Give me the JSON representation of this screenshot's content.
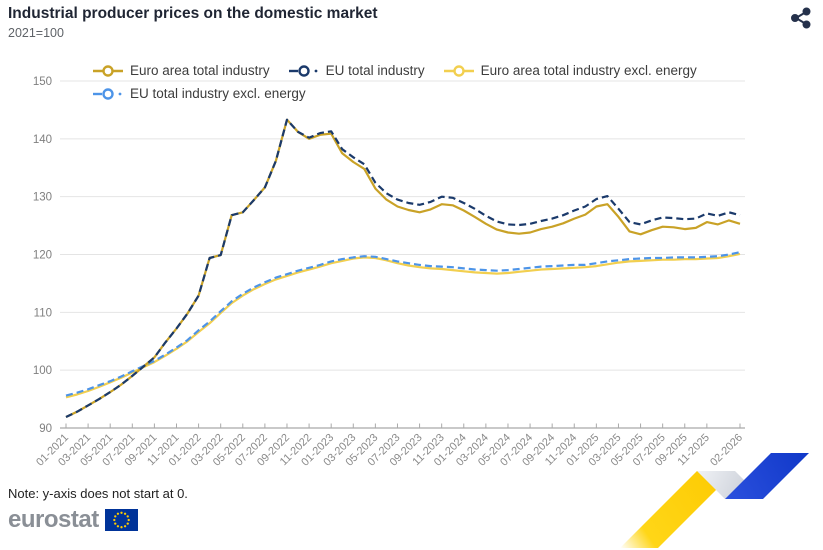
{
  "header": {
    "title": "Industrial producer prices on the domestic market",
    "subtitle": "2021=100"
  },
  "icons": {
    "share": "share-network",
    "flag": "eu-flag"
  },
  "note": {
    "text": "Note: y-axis does not start at 0."
  },
  "footer": {
    "brand": "eurostat"
  },
  "chart_data": {
    "type": "line",
    "title": "Industrial producer prices on the domestic market",
    "subtitle": "2021=100",
    "ylim": [
      90,
      150
    ],
    "yticks": [
      90,
      100,
      110,
      120,
      130,
      140,
      150
    ],
    "grid": "horizontal",
    "legend_position": "top",
    "x": [
      "01-2021",
      "02-2021",
      "03-2021",
      "04-2021",
      "05-2021",
      "06-2021",
      "07-2021",
      "08-2021",
      "09-2021",
      "10-2021",
      "11-2021",
      "12-2021",
      "01-2022",
      "02-2022",
      "03-2022",
      "04-2022",
      "05-2022",
      "06-2022",
      "07-2022",
      "08-2022",
      "09-2022",
      "10-2022",
      "11-2022",
      "12-2022",
      "01-2023",
      "02-2023",
      "03-2023",
      "04-2023",
      "05-2023",
      "06-2023",
      "07-2023",
      "08-2023",
      "09-2023",
      "10-2023",
      "11-2023",
      "12-2023",
      "01-2024",
      "02-2024",
      "03-2024",
      "04-2024",
      "05-2024",
      "06-2024",
      "07-2024",
      "08-2024",
      "09-2024",
      "10-2024",
      "11-2024",
      "12-2024",
      "01-2025",
      "02-2025",
      "03-2025",
      "04-2025",
      "05-2025",
      "06-2025",
      "07-2025",
      "08-2025",
      "09-2025",
      "10-2025",
      "11-2025",
      "12-2025",
      "01-2026",
      "02-2026"
    ],
    "x_tick_indices": [
      0,
      2,
      4,
      6,
      8,
      10,
      12,
      14,
      16,
      18,
      20,
      22,
      24,
      26,
      28,
      30,
      32,
      34,
      36,
      38,
      40,
      42,
      44,
      46,
      48,
      50,
      52,
      54,
      56,
      58,
      61
    ],
    "series": [
      {
        "name": "Euro area total industry",
        "color": "#C9A227",
        "dash": "none",
        "values": [
          91.9,
          92.8,
          93.9,
          95.0,
          96.2,
          97.5,
          99.0,
          100.6,
          102.2,
          104.8,
          107.2,
          109.8,
          112.9,
          119.4,
          119.9,
          126.8,
          127.3,
          129.4,
          131.6,
          136.2,
          143.3,
          141.2,
          140.0,
          140.7,
          140.9,
          137.5,
          136.0,
          134.8,
          131.4,
          129.5,
          128.3,
          127.7,
          127.3,
          127.8,
          128.7,
          128.5,
          127.6,
          126.5,
          125.3,
          124.3,
          123.8,
          123.6,
          123.8,
          124.4,
          124.8,
          125.4,
          126.2,
          126.9,
          128.3,
          128.7,
          126.5,
          124.0,
          123.5,
          124.2,
          124.8,
          124.7,
          124.4,
          124.6,
          125.6,
          125.2,
          125.9,
          125.3
        ]
      },
      {
        "name": "EU total industry",
        "color": "#1B3A6B",
        "dash": "7 4",
        "values": [
          91.9,
          92.8,
          93.9,
          95.0,
          96.2,
          97.5,
          99.0,
          100.6,
          102.2,
          104.8,
          107.2,
          109.8,
          112.9,
          119.4,
          119.9,
          126.8,
          127.3,
          129.4,
          131.6,
          136.2,
          143.3,
          141.2,
          140.2,
          141.0,
          141.3,
          138.2,
          136.8,
          135.6,
          132.4,
          130.6,
          129.5,
          128.9,
          128.6,
          129.1,
          130.0,
          129.8,
          128.9,
          127.9,
          126.7,
          125.7,
          125.2,
          125.1,
          125.3,
          125.8,
          126.2,
          126.8,
          127.6,
          128.3,
          129.6,
          130.1,
          127.9,
          125.6,
          125.2,
          125.9,
          126.4,
          126.3,
          126.1,
          126.2,
          127.1,
          126.7,
          127.3,
          126.8
        ]
      },
      {
        "name": "Euro area total industry excl. energy",
        "color": "#F2CF4F",
        "dash": "none",
        "values": [
          95.3,
          95.8,
          96.4,
          97.1,
          97.9,
          98.7,
          99.6,
          100.5,
          101.4,
          102.5,
          103.7,
          105.0,
          106.6,
          108.1,
          109.9,
          111.6,
          112.9,
          114.0,
          114.9,
          115.7,
          116.3,
          116.9,
          117.4,
          117.9,
          118.5,
          118.9,
          119.3,
          119.5,
          119.4,
          119.0,
          118.5,
          118.1,
          117.8,
          117.6,
          117.5,
          117.3,
          117.1,
          116.9,
          116.8,
          116.7,
          116.8,
          117.0,
          117.2,
          117.4,
          117.5,
          117.6,
          117.7,
          117.8,
          118.0,
          118.3,
          118.6,
          118.8,
          118.9,
          119.0,
          119.1,
          119.1,
          119.2,
          119.2,
          119.3,
          119.4,
          119.7,
          120.1
        ]
      },
      {
        "name": "EU total industry excl. energy",
        "color": "#4D94E8",
        "dash": "7 4",
        "values": [
          95.6,
          96.1,
          96.7,
          97.4,
          98.1,
          98.9,
          99.8,
          100.7,
          101.6,
          102.7,
          103.9,
          105.2,
          106.9,
          108.4,
          110.2,
          111.9,
          113.2,
          114.3,
          115.2,
          116.0,
          116.6,
          117.2,
          117.7,
          118.2,
          118.8,
          119.2,
          119.5,
          119.7,
          119.6,
          119.2,
          118.8,
          118.5,
          118.2,
          118.0,
          117.9,
          117.8,
          117.6,
          117.4,
          117.3,
          117.2,
          117.3,
          117.5,
          117.7,
          117.9,
          118.0,
          118.1,
          118.2,
          118.2,
          118.5,
          118.8,
          119.0,
          119.2,
          119.3,
          119.4,
          119.4,
          119.5,
          119.5,
          119.5,
          119.6,
          119.7,
          120.0,
          120.4
        ]
      }
    ]
  }
}
